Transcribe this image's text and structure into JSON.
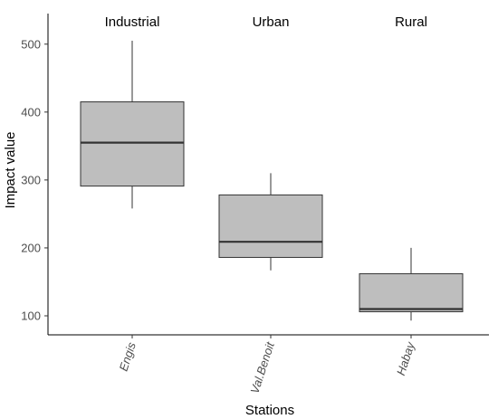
{
  "chart_data": {
    "type": "boxplot",
    "title": "",
    "xlabel": "Stations",
    "ylabel": "Impact value",
    "ylim": [
      72,
      545
    ],
    "yticks": [
      100,
      200,
      300,
      400,
      500
    ],
    "grid": false,
    "categories": [
      "Engis",
      "Val.Benoit",
      "Habay"
    ],
    "groups": [
      "Industrial",
      "Urban",
      "Rural"
    ],
    "boxes": [
      {
        "category": "Engis",
        "group": "Industrial",
        "whisker_low": 258,
        "q1": 291,
        "median": 355,
        "q3": 415,
        "whisker_high": 505
      },
      {
        "category": "Val.Benoit",
        "group": "Urban",
        "whisker_low": 167,
        "q1": 186,
        "median": 209,
        "q3": 278,
        "whisker_high": 310
      },
      {
        "category": "Habay",
        "group": "Rural",
        "whisker_low": 93,
        "q1": 106,
        "median": 110,
        "q3": 162,
        "whisker_high": 200
      }
    ],
    "colors": {
      "box_fill": "#bebebe",
      "line": "#333333"
    }
  }
}
